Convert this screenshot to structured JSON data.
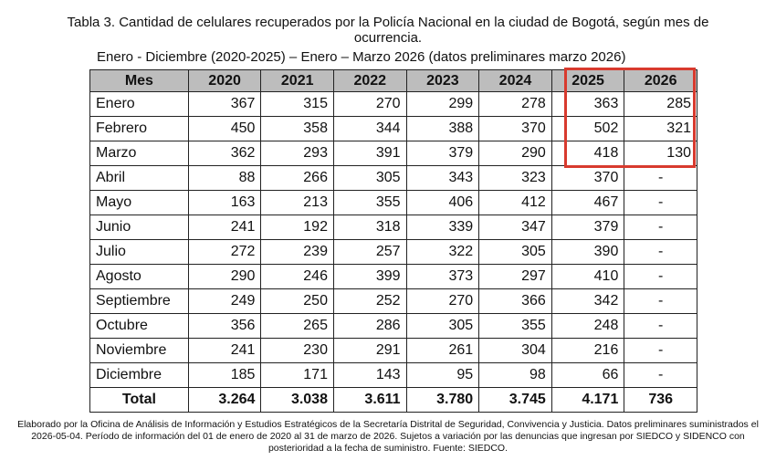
{
  "title": "Tabla 3. Cantidad de celulares recuperados por la Policía Nacional en la ciudad de Bogotá, según mes de ocurrencia.",
  "subtitle": "Enero - Diciembre (2020-2025) – Enero – Marzo 2026 (datos preliminares marzo 2026)",
  "columns": [
    "Mes",
    "2020",
    "2021",
    "2022",
    "2023",
    "2024",
    "2025",
    "2026"
  ],
  "rows": [
    [
      "Enero",
      "367",
      "315",
      "270",
      "299",
      "278",
      "363",
      "285"
    ],
    [
      "Febrero",
      "450",
      "358",
      "344",
      "388",
      "370",
      "502",
      "321"
    ],
    [
      "Marzo",
      "362",
      "293",
      "391",
      "379",
      "290",
      "418",
      "130"
    ],
    [
      "Abril",
      "88",
      "266",
      "305",
      "343",
      "323",
      "370",
      "-"
    ],
    [
      "Mayo",
      "163",
      "213",
      "355",
      "406",
      "412",
      "467",
      "-"
    ],
    [
      "Junio",
      "241",
      "192",
      "318",
      "339",
      "347",
      "379",
      "-"
    ],
    [
      "Julio",
      "272",
      "239",
      "257",
      "322",
      "305",
      "390",
      "-"
    ],
    [
      "Agosto",
      "290",
      "246",
      "399",
      "373",
      "297",
      "410",
      "-"
    ],
    [
      "Septiembre",
      "249",
      "250",
      "252",
      "270",
      "366",
      "342",
      "-"
    ],
    [
      "Octubre",
      "356",
      "265",
      "286",
      "305",
      "355",
      "248",
      "-"
    ],
    [
      "Noviembre",
      "241",
      "230",
      "291",
      "261",
      "304",
      "216",
      "-"
    ],
    [
      "Diciembre",
      "185",
      "171",
      "143",
      "95",
      "98",
      "66",
      "-"
    ]
  ],
  "total": [
    "Total",
    "3.264",
    "3.038",
    "3.611",
    "3.780",
    "3.745",
    "4.171",
    "736"
  ],
  "footnote": "Elaborado por la Oficina de Análisis de Información y Estudios Estratégicos de la Secretaría Distrital de Seguridad, Convivencia y Justicia. Datos preliminares suministrados el 2026-05-04. Período de información del 01 de enero de 2020 al 31 de marzo de 2026. Sujetos a variación por las denuncias que ingresan por SIEDCO y SIDENCO con posterioridad a la fecha de suministro. Fuente: SIEDCO.",
  "colors": {
    "header_bg": "#bdbdbd",
    "highlight_border": "#d83a2e"
  }
}
